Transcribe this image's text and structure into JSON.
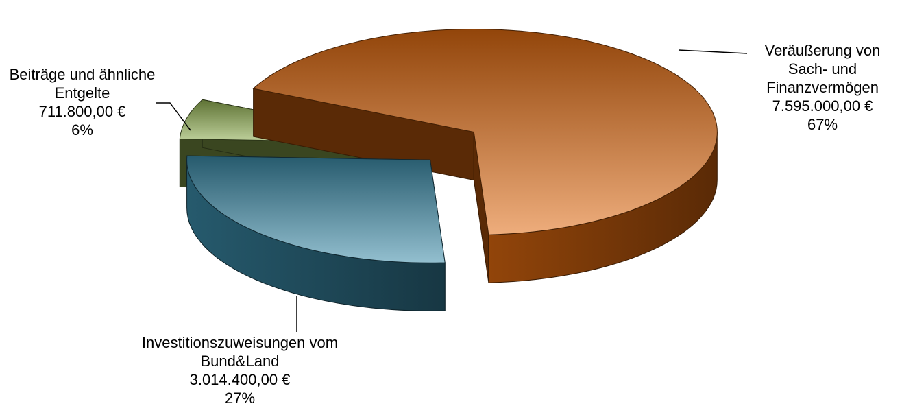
{
  "chart_data": {
    "type": "pie3d",
    "categories": [
      "Veräußerung von Sach- und Finanzvermögen",
      "Investitionszuweisungen vom Bund&Land",
      "Beiträge und ähnliche Entgelte"
    ],
    "values": [
      7595000,
      3014400,
      711800
    ],
    "value_labels": [
      "7.595.000,00 €",
      "3.014.400,00 €",
      "711.800,00 €"
    ],
    "percentages": [
      67,
      27,
      6
    ],
    "percentage_labels": [
      "67%",
      "27%",
      "6%"
    ],
    "colors": [
      "#e06a10",
      "#3a8aa8",
      "#90b050"
    ]
  }
}
